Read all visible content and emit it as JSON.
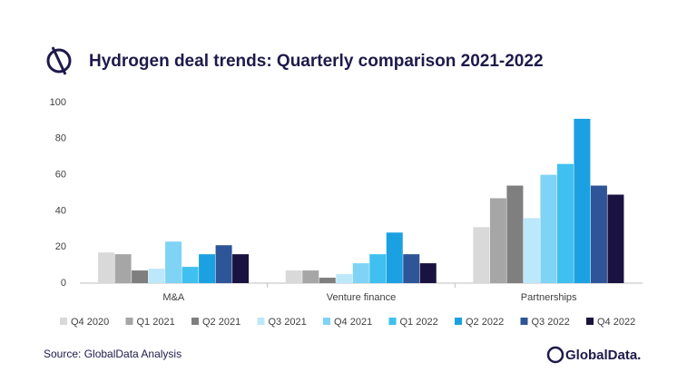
{
  "chart_data": {
    "type": "bar",
    "title": "Hydrogen deal trends: Quarterly comparison 2021-2022",
    "categories": [
      "M&A",
      "Venture finance",
      "Partnerships"
    ],
    "series": [
      {
        "name": "Q4 2020",
        "color": "#d9d9d9",
        "values": [
          17,
          7,
          31
        ]
      },
      {
        "name": "Q1 2021",
        "color": "#a6a6a6",
        "values": [
          16,
          7,
          47
        ]
      },
      {
        "name": "Q2 2021",
        "color": "#7f7f7f",
        "values": [
          7,
          3,
          54
        ]
      },
      {
        "name": "Q3 2021",
        "color": "#bde8fb",
        "values": [
          8,
          5,
          36
        ]
      },
      {
        "name": "Q4 2021",
        "color": "#7fd3f5",
        "values": [
          23,
          11,
          60
        ]
      },
      {
        "name": "Q1 2022",
        "color": "#3fc0f0",
        "values": [
          9,
          16,
          66
        ]
      },
      {
        "name": "Q2 2022",
        "color": "#1ba1e2",
        "values": [
          16,
          28,
          91
        ]
      },
      {
        "name": "Q3 2022",
        "color": "#2e5597",
        "values": [
          21,
          16,
          54
        ]
      },
      {
        "name": "Q4 2022",
        "color": "#1a1240",
        "values": [
          16,
          11,
          49
        ]
      }
    ],
    "ylim": [
      0,
      100
    ],
    "yticks": [
      0,
      20,
      40,
      60,
      80,
      100
    ],
    "grid": false,
    "legend": "bottom",
    "source": "Source: GlobalData Analysis",
    "logo_text": "GlobalData."
  }
}
